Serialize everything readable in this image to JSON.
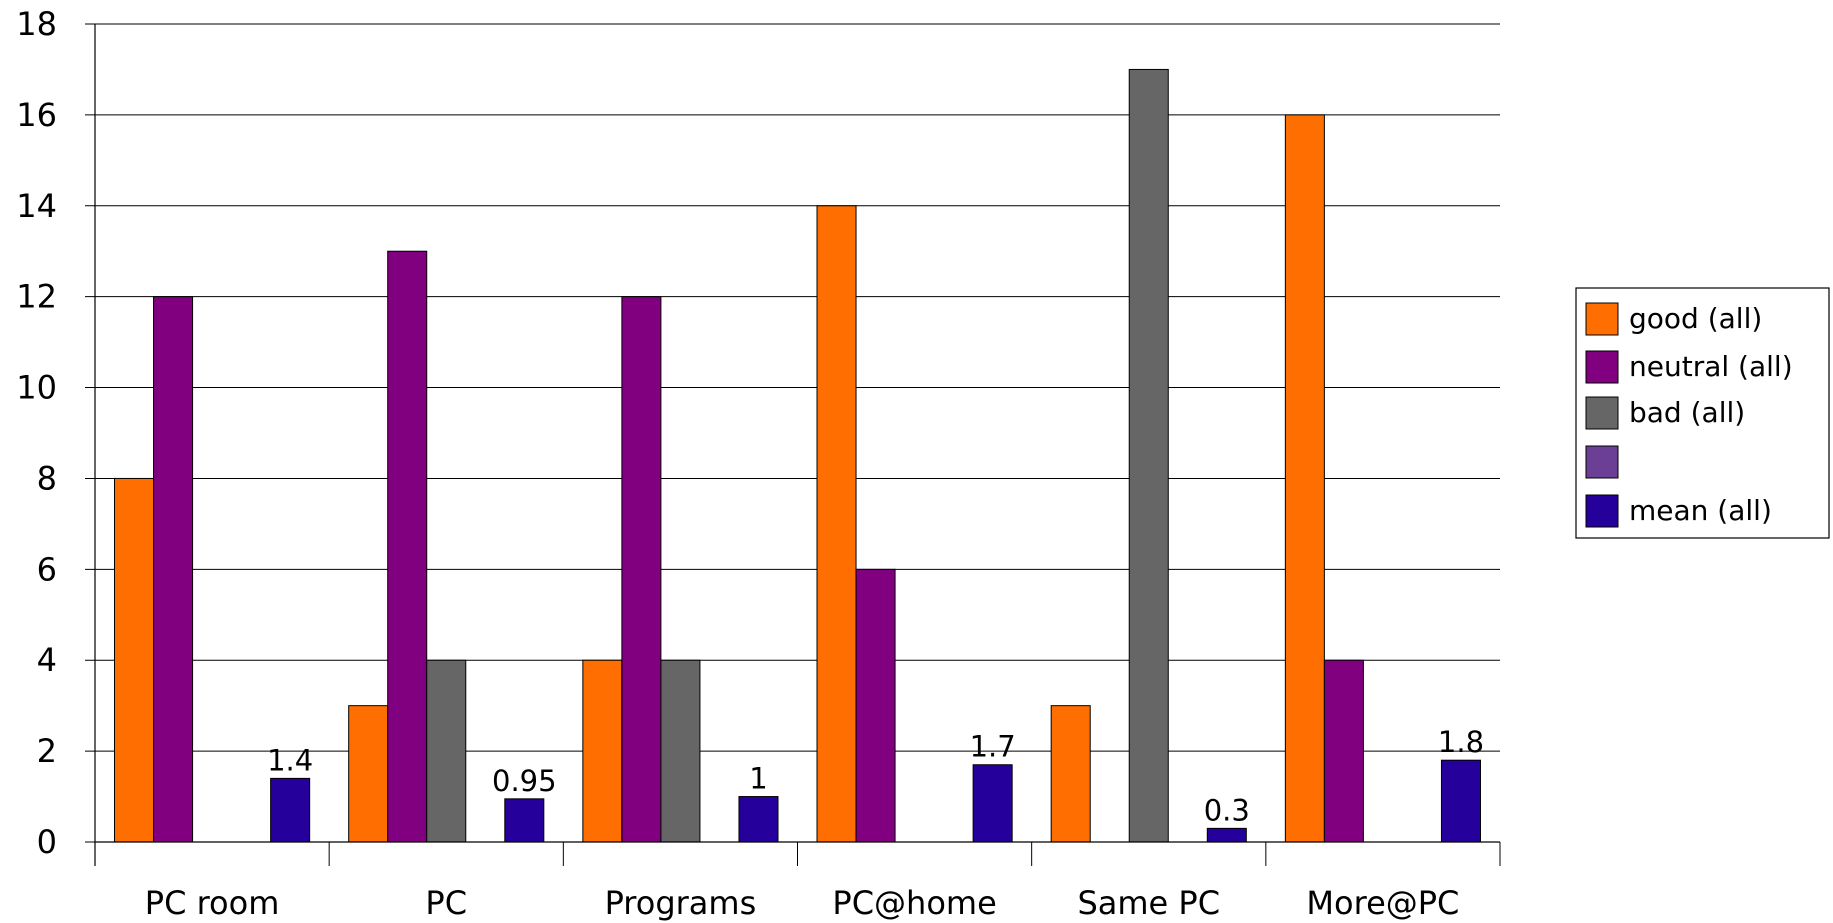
{
  "chart_data": {
    "type": "bar",
    "categories": [
      "PC room",
      "PC",
      "Programs",
      "PC@home",
      "Same PC",
      "More@PC"
    ],
    "series": [
      {
        "name": "good (all)",
        "color": "#ff6e00",
        "values": [
          8,
          3,
          4,
          14,
          3,
          16
        ]
      },
      {
        "name": "neutral (all)",
        "color": "#800080",
        "values": [
          12,
          13,
          12,
          6,
          0,
          4
        ]
      },
      {
        "name": "bad (all)",
        "color": "#666666",
        "values": [
          0,
          4,
          4,
          0,
          17,
          0
        ]
      },
      {
        "name": "",
        "color": "#6b3f96",
        "values": [
          0,
          0,
          0,
          0,
          0,
          0
        ]
      },
      {
        "name": "mean (all)",
        "color": "#26009a",
        "values": [
          1.4,
          0.95,
          1,
          1.7,
          0.3,
          1.8
        ],
        "data_labels": [
          "1.4",
          "0.95",
          "1",
          "1.7",
          "0.3",
          "1.8"
        ]
      }
    ],
    "yticks": [
      "0",
      "2",
      "4",
      "6",
      "8",
      "10",
      "12",
      "14",
      "16",
      "18"
    ],
    "ylim": [
      0,
      18
    ],
    "grid": true,
    "legend_position": "right",
    "title": "",
    "xlabel": "",
    "ylabel": ""
  }
}
